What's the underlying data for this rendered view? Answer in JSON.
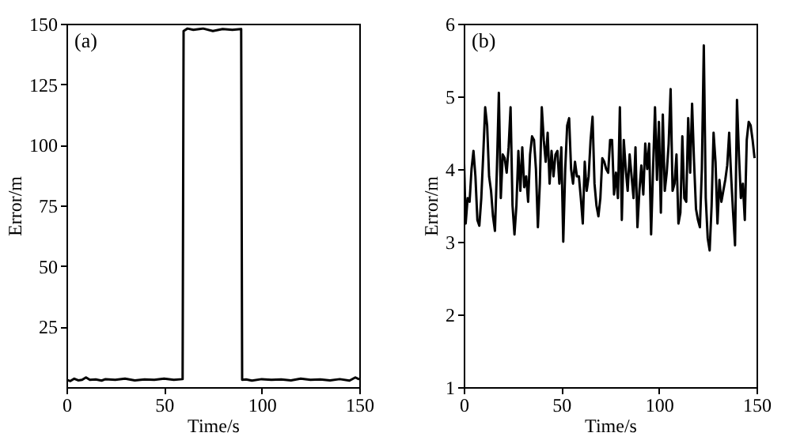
{
  "chart_data": [
    {
      "type": "line",
      "xlabel": "Time/s",
      "ylabel": "Error/m",
      "annotations": [
        "(a)"
      ],
      "xlim": [
        0,
        150
      ],
      "xticks": [
        0,
        50,
        100,
        150
      ],
      "ylim": [
        0,
        150
      ],
      "yticks": [
        25,
        50,
        75,
        100,
        125,
        150
      ],
      "grid": false,
      "marker": "none",
      "line_style": "solid",
      "series": [
        {
          "color": "#000000",
          "x": [
            0,
            2,
            4,
            6,
            8,
            10,
            12,
            15,
            18,
            20,
            25,
            30,
            35,
            40,
            45,
            50,
            55,
            59.5,
            60,
            62,
            65,
            70,
            75,
            80,
            85,
            89.5,
            90,
            92,
            95,
            100,
            105,
            110,
            115,
            120,
            125,
            130,
            135,
            140,
            145,
            148,
            150
          ],
          "values": [
            3,
            2.5,
            3.5,
            2.8,
            3,
            4,
            3,
            3.2,
            2.7,
            3.3,
            3,
            3.5,
            2.8,
            3.2,
            3,
            3.5,
            3,
            3.3,
            147,
            148,
            147.5,
            148,
            147,
            147.8,
            147.5,
            147.8,
            3,
            3.2,
            2.7,
            3.3,
            3,
            3.2,
            2.8,
            3.5,
            3,
            3.2,
            2.8,
            3.3,
            2.7,
            4,
            3.2
          ]
        }
      ]
    },
    {
      "type": "line",
      "xlabel": "Time/s",
      "ylabel": "Error/m",
      "annotations": [
        "(b)"
      ],
      "xlim": [
        0,
        150
      ],
      "xticks": [
        0,
        50,
        100,
        150
      ],
      "ylim": [
        1,
        6
      ],
      "yticks": [
        1,
        2,
        3,
        4,
        5,
        6
      ],
      "grid": false,
      "marker": "none",
      "line_style": "solid",
      "series": [
        {
          "color": "#000000",
          "x": [
            0,
            1,
            2,
            3,
            4,
            5,
            6,
            7,
            8,
            9,
            10,
            11,
            12,
            13,
            14,
            15,
            16,
            17,
            18,
            19,
            20,
            21,
            22,
            23,
            24,
            25,
            26,
            27,
            28,
            29,
            30,
            31,
            32,
            33,
            34,
            35,
            36,
            37,
            38,
            39,
            40,
            41,
            42,
            43,
            44,
            45,
            46,
            47,
            48,
            49,
            50,
            51,
            52,
            53,
            54,
            55,
            56,
            57,
            58,
            59,
            60,
            61,
            62,
            63,
            64,
            65,
            66,
            67,
            68,
            69,
            70,
            71,
            72,
            73,
            74,
            75,
            76,
            77,
            78,
            79,
            80,
            81,
            82,
            83,
            84,
            85,
            86,
            87,
            88,
            89,
            90,
            91,
            92,
            93,
            94,
            95,
            96,
            97,
            98,
            99,
            100,
            101,
            102,
            103,
            104,
            105,
            106,
            107,
            108,
            109,
            110,
            111,
            112,
            113,
            114,
            115,
            116,
            117,
            118,
            119,
            120,
            121,
            122,
            123,
            124,
            125,
            126,
            127,
            128,
            129,
            130,
            131,
            132,
            133,
            134,
            135,
            136,
            137,
            138,
            139,
            140,
            141,
            142,
            143,
            144,
            145,
            146,
            147,
            148,
            149
          ],
          "values": [
            4.3,
            3.25,
            3.6,
            3.55,
            4.0,
            4.25,
            3.9,
            3.3,
            3.22,
            3.6,
            4.2,
            4.85,
            4.6,
            3.9,
            3.7,
            3.35,
            3.15,
            4.0,
            5.05,
            3.6,
            4.2,
            4.15,
            3.95,
            4.3,
            4.85,
            3.5,
            3.1,
            3.5,
            4.25,
            3.7,
            4.3,
            3.75,
            3.9,
            3.55,
            4.2,
            4.45,
            4.4,
            4.0,
            3.2,
            3.8,
            4.85,
            4.4,
            4.1,
            4.5,
            3.8,
            4.25,
            3.9,
            4.2,
            4.25,
            3.8,
            4.3,
            3.0,
            4.0,
            4.6,
            4.7,
            4.0,
            3.8,
            4.1,
            3.9,
            3.9,
            3.6,
            3.25,
            4.1,
            3.7,
            3.9,
            4.4,
            4.72,
            3.8,
            3.5,
            3.35,
            3.6,
            4.15,
            4.1,
            4.0,
            3.95,
            4.4,
            4.4,
            3.65,
            3.95,
            3.6,
            4.85,
            3.3,
            4.4,
            4.0,
            3.7,
            4.2,
            3.9,
            3.6,
            4.3,
            3.2,
            3.7,
            4.05,
            3.65,
            4.35,
            4.0,
            4.35,
            3.1,
            4.0,
            4.85,
            3.85,
            4.65,
            3.4,
            4.75,
            3.7,
            3.95,
            4.35,
            5.1,
            3.7,
            3.8,
            4.2,
            3.25,
            3.4,
            4.45,
            3.6,
            3.55,
            4.7,
            3.95,
            4.9,
            4.1,
            3.45,
            3.3,
            3.2,
            4.0,
            5.7,
            3.6,
            3.05,
            2.88,
            3.5,
            4.5,
            4.1,
            3.25,
            3.85,
            3.55,
            3.7,
            3.85,
            4.05,
            4.5,
            3.9,
            3.4,
            2.95,
            4.95,
            4.2,
            3.6,
            3.8,
            3.3,
            4.4,
            4.65,
            4.6,
            4.4,
            4.15
          ]
        }
      ]
    }
  ]
}
